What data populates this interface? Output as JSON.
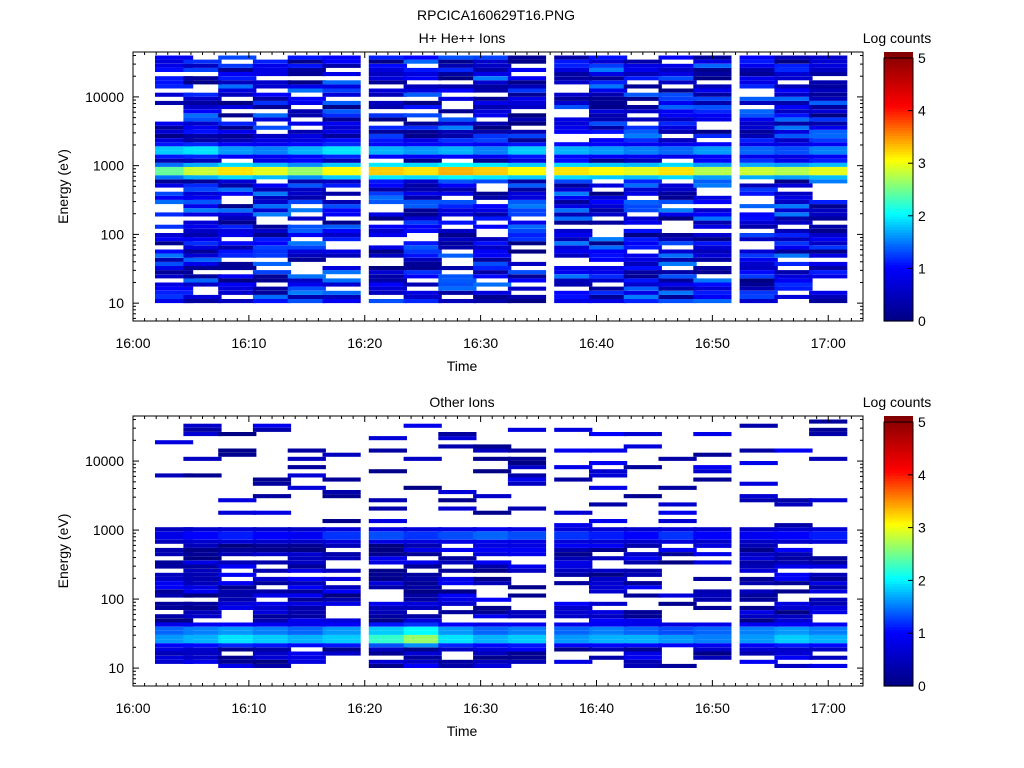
{
  "figure": {
    "filename": "RPCICA160629T16.PNG"
  },
  "colorscale": {
    "stops": [
      "#000080",
      "#0000ff",
      "#00ffff",
      "#ffff00",
      "#ff0000",
      "#800000"
    ]
  },
  "chart_data": [
    {
      "type": "heatmap",
      "title": "H+ He++ Ions",
      "xlabel": "Time",
      "ylabel": "Energy (eV)",
      "colorbar_label": "Log counts",
      "xticks": [
        "16:00",
        "16:10",
        "16:20",
        "16:30",
        "16:40",
        "16:50",
        "17:00"
      ],
      "xlim": [
        "16:00",
        "17:03"
      ],
      "yticks": [
        "10",
        "100",
        "1000",
        "10000"
      ],
      "ylim": [
        5.5,
        45000
      ],
      "yscale": "log",
      "colorbar_ticks": [
        "0",
        "1",
        "2",
        "3",
        "4",
        "5"
      ],
      "clim": [
        0,
        5
      ],
      "time_bins": [
        "16:02",
        "16:06",
        "16:09",
        "16:12",
        "16:15",
        "16:18",
        "16:22",
        "16:25",
        "16:28",
        "16:31",
        "16:34",
        "16:38",
        "16:41",
        "16:44",
        "16:47",
        "16:50",
        "16:54",
        "16:57",
        "17:00"
      ],
      "bands": [
        {
          "energy": 800,
          "log_counts": [
            2.4,
            2.8,
            3.1,
            2.9,
            2.6,
            3.0,
            3.2,
            3.1,
            3.3,
            3.2,
            3.0,
            3.1,
            3.0,
            2.9,
            3.1,
            2.7,
            2.8,
            2.7,
            2.9
          ]
        },
        {
          "energy": 1600,
          "log_counts": [
            1.8,
            1.9,
            1.6,
            1.5,
            1.7,
            1.9,
            1.7,
            1.6,
            1.7,
            1.5,
            1.8,
            1.7,
            1.6,
            1.5,
            1.4,
            1.6,
            1.4,
            1.3,
            1.5
          ]
        }
      ],
      "background": {
        "energy_range": [
          10,
          40000
        ],
        "log_counts_range": [
          0,
          1.5
        ]
      }
    },
    {
      "type": "heatmap",
      "title": "Other Ions",
      "xlabel": "Time",
      "ylabel": "Energy (eV)",
      "colorbar_label": "Log counts",
      "xticks": [
        "16:00",
        "16:10",
        "16:20",
        "16:30",
        "16:40",
        "16:50",
        "17:00"
      ],
      "xlim": [
        "16:00",
        "17:03"
      ],
      "yticks": [
        "10",
        "100",
        "1000",
        "10000"
      ],
      "ylim": [
        5.5,
        45000
      ],
      "yscale": "log",
      "colorbar_ticks": [
        "0",
        "1",
        "2",
        "3",
        "4",
        "5"
      ],
      "clim": [
        0,
        5
      ],
      "time_bins": [
        "16:02",
        "16:06",
        "16:09",
        "16:12",
        "16:15",
        "16:18",
        "16:22",
        "16:25",
        "16:28",
        "16:31",
        "16:34",
        "16:38",
        "16:41",
        "16:44",
        "16:47",
        "16:50",
        "16:54",
        "16:57",
        "17:00"
      ],
      "bands": [
        {
          "energy": 28,
          "log_counts": [
            1.6,
            1.7,
            1.9,
            1.8,
            1.7,
            1.8,
            2.2,
            2.6,
            1.9,
            1.7,
            1.8,
            1.6,
            1.7,
            1.7,
            1.6,
            1.5,
            1.6,
            1.8,
            1.7
          ]
        },
        {
          "energy": 35,
          "log_counts": [
            1.4,
            1.5,
            1.6,
            1.5,
            1.4,
            1.6,
            1.8,
            2.0,
            1.6,
            1.4,
            1.5,
            1.4,
            1.5,
            1.4,
            1.3,
            1.4,
            1.5,
            1.6,
            1.5
          ]
        },
        {
          "energy": 780,
          "log_counts": [
            0.8,
            1.0,
            1.1,
            1.0,
            0.9,
            1.2,
            1.3,
            1.2,
            1.3,
            1.4,
            1.3,
            1.2,
            1.1,
            1.0,
            1.2,
            1.0,
            0.9,
            1.0,
            1.1
          ]
        }
      ],
      "background": {
        "energy_range": [
          10,
          40000
        ],
        "log_counts_range": [
          0,
          1.0
        ]
      }
    }
  ]
}
